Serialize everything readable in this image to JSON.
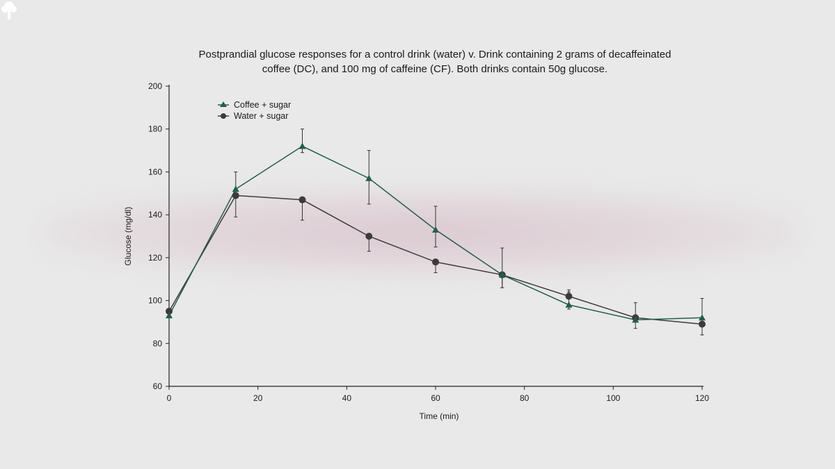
{
  "chart_data": {
    "type": "line",
    "title": "Postprandial glucose responses for a control drink (water) v. Drink containing 2 grams of decaffeinated coffee (DC), and 100 mg of caffeine (CF). Both drinks contain 50g glucose.",
    "title_lines": [
      "Postprandial glucose responses for a control drink (water) v. Drink containing 2 grams of decaffeinated",
      "coffee (DC), and 100 mg of caffeine (CF). Both drinks contain 50g glucose."
    ],
    "xlabel": "Time (min)",
    "ylabel": "Glucose (mg/dl)",
    "xlim": [
      0,
      120
    ],
    "ylim": [
      60,
      200
    ],
    "xticks": [
      0,
      20,
      40,
      60,
      80,
      100,
      120
    ],
    "yticks": [
      60,
      80,
      100,
      120,
      140,
      160,
      180,
      200
    ],
    "grid": false,
    "legend_position": "top-left",
    "x": [
      0,
      15,
      30,
      45,
      60,
      75,
      90,
      105,
      120
    ],
    "series": [
      {
        "name": "Coffee + sugar",
        "marker": "triangle",
        "color": "#1f5f4f",
        "values": [
          93,
          152,
          172,
          157,
          133,
          112,
          98,
          91,
          92
        ],
        "error_low": [
          null,
          148,
          169,
          145,
          125,
          106,
          96,
          87,
          84
        ],
        "error_high": [
          null,
          160,
          180,
          170,
          144,
          124.5,
          104,
          99,
          101
        ]
      },
      {
        "name": "Water + sugar",
        "marker": "circle",
        "color": "#3d3a3c",
        "values": [
          95,
          149,
          147,
          130,
          118,
          112,
          102,
          92,
          89
        ],
        "error_low": [
          null,
          139,
          137.5,
          123,
          113,
          106,
          101,
          null,
          84
        ],
        "error_high": [
          null,
          150,
          147,
          130,
          118,
          112,
          105,
          null,
          89
        ]
      }
    ]
  }
}
